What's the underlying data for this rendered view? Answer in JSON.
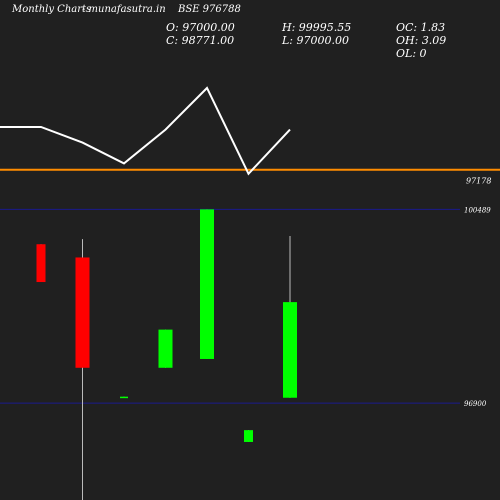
{
  "header": {
    "brand": "Monthly Charts",
    "site": "- munafasutra.in",
    "symbol": "BSE 976788",
    "open": "O: 97000.00",
    "close": "C: 98771.00",
    "high": "H: 99995.55",
    "low": "L: 97000.00",
    "oc": "OC: 1.83",
    "oh": "OH: 3.09",
    "ol": "OL: 0"
  },
  "chart_data": {
    "type": "candlestick",
    "panels": [
      "line",
      "candles"
    ],
    "line_series": [
      98000,
      98000,
      97700,
      97300,
      97950,
      98750,
      97100,
      97950
    ],
    "line_ylim": [
      96500,
      99000
    ],
    "reference_line": {
      "label": "97178",
      "value": 97178,
      "color": "#ff8c00"
    },
    "candle_ylim": [
      96310,
      100755
    ],
    "price_levels": [
      {
        "label": "100489",
        "value": 100489
      },
      {
        "label": "96900",
        "value": 96900
      }
    ],
    "candles": [
      {
        "open": 99843,
        "close": 99143,
        "high": 99843,
        "low": 99143,
        "color": "#ff0000"
      },
      {
        "open": 99598,
        "close": 97555,
        "high": 99937,
        "low": 94500,
        "color": "#ff0000"
      },
      {
        "open": 97000,
        "close": 97020,
        "high": 97020,
        "low": 97000,
        "color": "#00ff00"
      },
      {
        "open": 97555,
        "close": 98262,
        "high": 98262,
        "low": 97555,
        "color": "#00ff00"
      },
      {
        "open": 97718,
        "close": 100489,
        "high": 100489,
        "low": 97718,
        "color": "#00ff00"
      },
      {
        "open": 96181,
        "close": 96400,
        "high": 96400,
        "low": 96181,
        "color": "#00ff00"
      },
      {
        "open": 97000,
        "close": 98771,
        "high": 99996,
        "low": 97000,
        "color": "#00ff00"
      }
    ]
  }
}
